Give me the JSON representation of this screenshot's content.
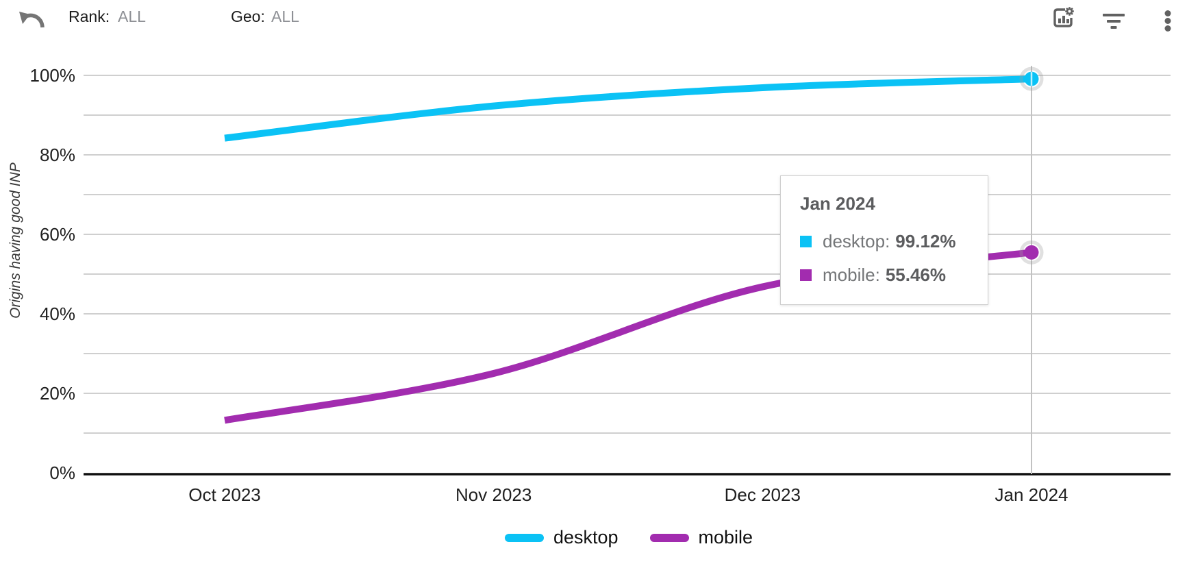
{
  "toolbar": {
    "rank_label": "Rank:",
    "rank_value": "ALL",
    "geo_label": "Geo:",
    "geo_value": "ALL",
    "icons": [
      "undo-icon",
      "chart-settings-icon",
      "filter-icon",
      "overflow-menu-icon"
    ]
  },
  "chart_data": {
    "type": "line",
    "x": [
      "Oct 2023",
      "Nov 2023",
      "Dec 2023",
      "Jan 2024"
    ],
    "series": [
      {
        "name": "desktop",
        "color": "#0bc2f5",
        "values": [
          84.2,
          92.3,
          96.9,
          99.12
        ]
      },
      {
        "name": "mobile",
        "color": "#a22caf",
        "values": [
          13.2,
          25.0,
          46.8,
          55.46
        ]
      }
    ],
    "ylabel": "Origins having good INP",
    "xlabel": "",
    "ylim": [
      0,
      100
    ],
    "y_tick_labels": [
      "0%",
      "20%",
      "40%",
      "60%",
      "80%",
      "100%"
    ],
    "grid": "horizontal every 10%",
    "legend_position": "bottom",
    "highlighted_x": "Jan 2024"
  },
  "tooltip": {
    "title": "Jan 2024",
    "rows": [
      {
        "label": "desktop:",
        "value": "99.12%"
      },
      {
        "label": "mobile:",
        "value": "55.46%"
      }
    ]
  },
  "legend": {
    "items": [
      {
        "label": "desktop"
      },
      {
        "label": "mobile"
      }
    ]
  }
}
